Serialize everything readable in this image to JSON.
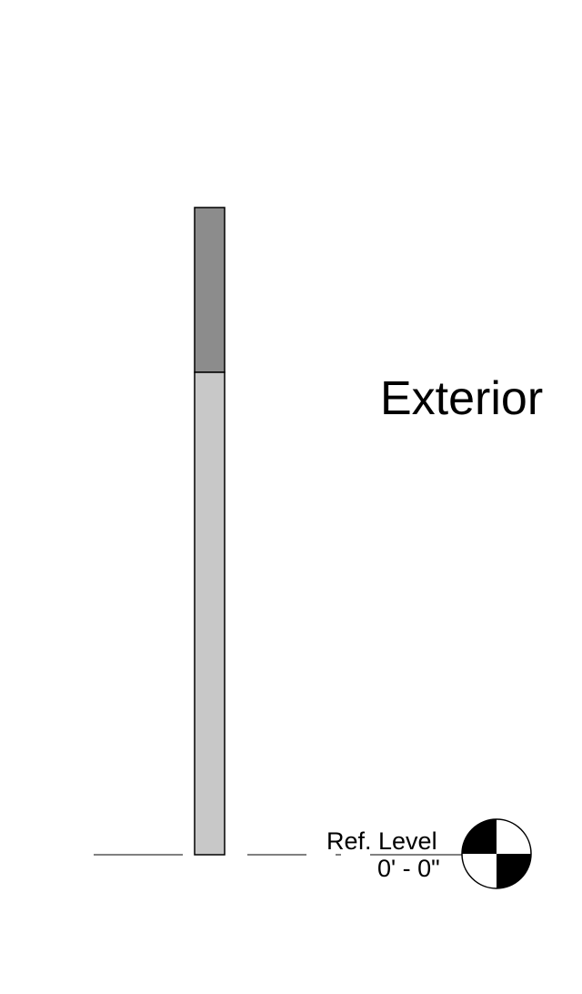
{
  "room_label": "Exterior",
  "level": {
    "name": "Ref. Level",
    "elevation": "0' - 0\""
  },
  "colors": {
    "upper_layer": "#8c8c8c",
    "lower_layer": "#c8c8c8",
    "line": "#000000",
    "background": "#ffffff"
  }
}
